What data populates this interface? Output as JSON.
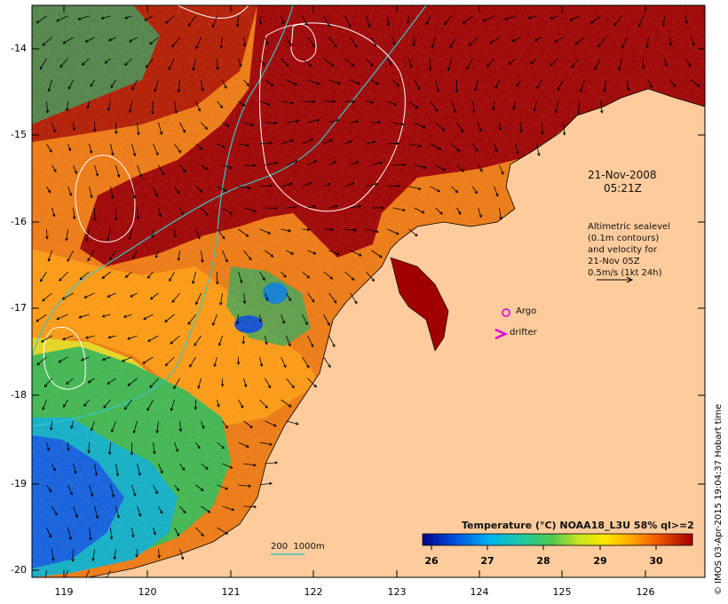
{
  "map": {
    "date_line1": "21-Nov-2008",
    "date_line2": "05:21Z",
    "legend_lines": [
      "Altimetric sealevel",
      "(0.1m contours)",
      "and velocity for",
      "21-Nov 05Z",
      "0.5m/s (1kt 24h)"
    ],
    "argo_label": "Argo",
    "drifter_label": "drifter",
    "depth_label": "200  1000m",
    "colorbar_title": "Temperature (°C) NOAA18_L3U 58% ql>=2",
    "colorbar_ticks": [
      "26",
      "27",
      "28",
      "29",
      "30"
    ],
    "lat_ticks": [
      "-14",
      "-15",
      "-16",
      "-17",
      "-18",
      "-19",
      "-20"
    ],
    "lon_ticks": [
      "119",
      "120",
      "121",
      "122",
      "123",
      "124",
      "125",
      "126"
    ],
    "credit": "© IMOS 03-Apr-2015 19:04:37 Hobart time",
    "colors": {
      "land": "#fdcb9c",
      "warm": "#a00000",
      "contour": "#ffffff",
      "isobath": "#35c7c7",
      "argo": "#e000e0"
    }
  }
}
